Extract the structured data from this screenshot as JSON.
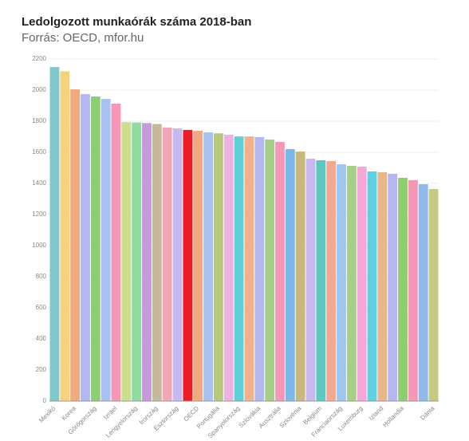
{
  "chart_data": {
    "type": "bar",
    "title": "Ledolgozott munkaórák száma 2018-ban",
    "subtitle": "Forrás: OECD, mfor.hu",
    "categories": [
      "Mexikó",
      null,
      "Korea",
      null,
      "Görögország",
      null,
      "Izrael",
      null,
      "Lengyelország",
      null,
      "Írország",
      null,
      "Észtország",
      null,
      "OECD",
      null,
      "Portugália",
      null,
      "Spanyolország",
      null,
      "Szlovákia",
      null,
      "Ausztrália",
      null,
      "Szlovénia",
      null,
      "Belgium",
      null,
      "Franciaország",
      null,
      "Luxemburg",
      null,
      "Izland",
      null,
      "Hollandia",
      null,
      null,
      "Dánia"
    ],
    "values": [
      2148,
      2121,
      2005,
      1974,
      1959,
      1943,
      1913,
      1794,
      1792,
      1788,
      1782,
      1759,
      1754,
      1744,
      1738,
      1728,
      1722,
      1713,
      1702,
      1702,
      1698,
      1682,
      1667,
      1621,
      1605,
      1559,
      1549,
      1544,
      1523,
      1513,
      1508,
      1477,
      1472,
      1462,
      1436,
      1421,
      1395,
      1364
    ],
    "colors": [
      "#7ec8cc",
      "#f5d27e",
      "#f3a97f",
      "#b5b8f0",
      "#8fcd74",
      "#a9c1f0",
      "#f598b8",
      "#c8e08c",
      "#8fdca0",
      "#c49ad8",
      "#c8b89a",
      "#f0a8b8",
      "#c8b8f0",
      "#ee1c25",
      "#f3a97f",
      "#a9c1f0",
      "#b8c87e",
      "#f0b0e0",
      "#5ed0d8",
      "#f3b08a",
      "#b5b8f0",
      "#a8cf8a",
      "#f598b8",
      "#7ab8e8",
      "#c8b87a",
      "#c8b8f0",
      "#5ec8c0",
      "#f3a98f",
      "#9cc8f0",
      "#a8cf8a",
      "#f5a8d8",
      "#5ed0e0",
      "#e8b888",
      "#b5b8f0",
      "#8fcd74",
      "#f598b8",
      "#8fb8f0",
      "#c8c880"
    ],
    "ylim": [
      0,
      2200
    ],
    "yticks": [
      0,
      200,
      400,
      600,
      800,
      1000,
      1200,
      1400,
      1600,
      1800,
      2000,
      2200
    ],
    "grid": true
  }
}
